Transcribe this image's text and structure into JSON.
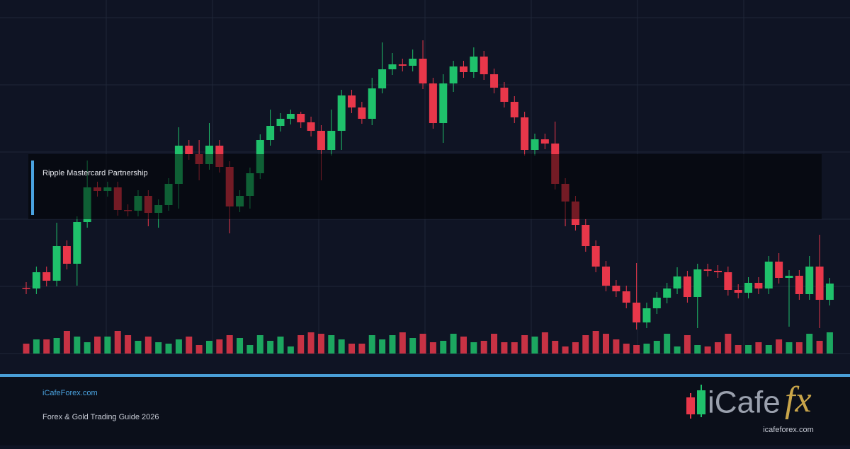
{
  "chart_data": {
    "type": "candlestick",
    "annotation": "Ripple Mastercard Partnership",
    "open": [
      93,
      92,
      115,
      103,
      152,
      127,
      186,
      235,
      230,
      235,
      203,
      202,
      223,
      199,
      210,
      240,
      294,
      282,
      268,
      294,
      264,
      208,
      223,
      255,
      302,
      322,
      332,
      339,
      327,
      315,
      288,
      315,
      365,
      348,
      332,
      375,
      402,
      409,
      407,
      417,
      382,
      326,
      382,
      406,
      398,
      420,
      395,
      376,
      356,
      334,
      288,
      303,
      297,
      240,
      215,
      182,
      152,
      123,
      96,
      88,
      72,
      44,
      64,
      79,
      92,
      109,
      80,
      119,
      117,
      115,
      90,
      86,
      100,
      92,
      130,
      107,
      110,
      84,
      123,
      76
    ],
    "high": [
      101,
      123,
      123,
      185,
      160,
      194,
      273,
      243,
      243,
      243,
      211,
      231,
      231,
      218,
      248,
      320,
      302,
      302,
      326,
      302,
      272,
      231,
      263,
      310,
      345,
      340,
      345,
      342,
      335,
      323,
      345,
      373,
      373,
      356,
      390,
      440,
      425,
      417,
      430,
      443,
      390,
      395,
      414,
      414,
      433,
      428,
      403,
      384,
      364,
      342,
      311,
      311,
      328,
      248,
      223,
      190,
      160,
      131,
      104,
      96,
      128,
      72,
      87,
      100,
      122,
      117,
      127,
      127,
      125,
      123,
      98,
      108,
      108,
      138,
      142,
      118,
      118,
      138,
      168,
      107
    ],
    "low": [
      84,
      84,
      95,
      95,
      119,
      96,
      178,
      222,
      222,
      195,
      194,
      194,
      180,
      178,
      202,
      205,
      274,
      245,
      260,
      256,
      170,
      200,
      205,
      247,
      294,
      314,
      324,
      319,
      307,
      245,
      280,
      288,
      340,
      325,
      323,
      368,
      394,
      399,
      399,
      374,
      318,
      298,
      370,
      390,
      390,
      387,
      368,
      348,
      326,
      280,
      280,
      289,
      232,
      180,
      174,
      144,
      115,
      88,
      80,
      64,
      34,
      36,
      56,
      71,
      84,
      72,
      36,
      109,
      107,
      82,
      78,
      78,
      84,
      84,
      99,
      38,
      76,
      76,
      36,
      68
    ],
    "close": [
      92,
      115,
      103,
      152,
      127,
      186,
      235,
      230,
      235,
      203,
      202,
      223,
      199,
      210,
      240,
      294,
      282,
      268,
      294,
      264,
      208,
      223,
      255,
      302,
      322,
      332,
      339,
      327,
      315,
      288,
      315,
      365,
      348,
      332,
      375,
      402,
      409,
      407,
      417,
      382,
      326,
      382,
      406,
      398,
      420,
      395,
      376,
      356,
      334,
      288,
      303,
      297,
      240,
      215,
      182,
      152,
      123,
      96,
      88,
      72,
      44,
      64,
      79,
      92,
      109,
      80,
      119,
      117,
      115,
      90,
      86,
      100,
      92,
      130,
      107,
      110,
      84,
      123,
      76,
      99
    ],
    "volume": [
      14,
      20,
      20,
      22,
      32,
      24,
      16,
      24,
      24,
      32,
      26,
      18,
      24,
      16,
      14,
      20,
      24,
      12,
      18,
      20,
      26,
      22,
      12,
      26,
      18,
      24,
      10,
      26,
      30,
      28,
      26,
      20,
      14,
      14,
      26,
      20,
      26,
      30,
      22,
      28,
      16,
      18,
      28,
      24,
      16,
      18,
      28,
      16,
      16,
      26,
      24,
      30,
      18,
      10,
      16,
      26,
      32,
      28,
      20,
      14,
      12,
      14,
      18,
      28,
      10,
      26,
      12,
      10,
      16,
      28,
      12,
      12,
      16,
      12,
      20,
      16,
      16,
      28,
      18,
      30
    ],
    "ylim": [
      0,
      500
    ],
    "yticks": [
      0,
      95,
      190,
      285,
      380,
      475
    ],
    "volume_lim": [
      0,
      40
    ],
    "up_color": "#1fc16b",
    "down_color": "#e8374a",
    "grid": true
  },
  "footer": {
    "site": "iCafeForex.com",
    "subtitle": "Forex & Gold Trading Guide 2026"
  },
  "logo": {
    "text": "iCafe",
    "accent": "fx",
    "url": "icafeforex.com"
  }
}
